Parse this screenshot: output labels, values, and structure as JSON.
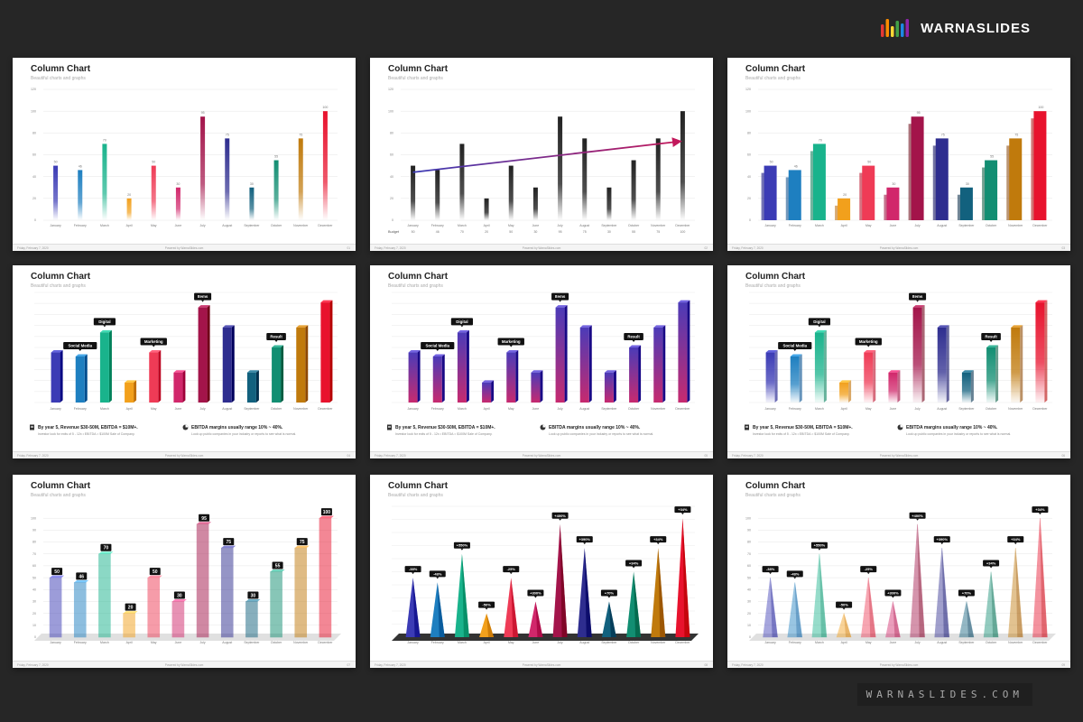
{
  "brand": {
    "name": "WARNASLIDES",
    "colors": [
      "#e53935",
      "#fb8c00",
      "#fdd835",
      "#43a047",
      "#1e88e5",
      "#8e24aa"
    ]
  },
  "footer_url": "WARNASLIDES.COM",
  "months": [
    "January",
    "February",
    "March",
    "April",
    "May",
    "June",
    "July",
    "August",
    "September",
    "October",
    "November",
    "December"
  ],
  "palette": [
    "#3b3bb5",
    "#1e7fc0",
    "#19b38c",
    "#f2a01c",
    "#ef3b56",
    "#d1276b",
    "#a3144a",
    "#2e2d8f",
    "#12617e",
    "#128e72",
    "#c07a0c",
    "#e8122d"
  ],
  "slides": [
    {
      "title": "Column Chart",
      "subtitle": "Beautiful charts and graphs",
      "footer_date": "Friday, February 7, 2020",
      "footer_center": "Powered by WarnaSlides.com",
      "footer_num": "01"
    },
    {
      "title": "Column Chart",
      "subtitle": "Beautiful charts and graphs",
      "footer_date": "Friday, February 7, 2020",
      "footer_center": "Powered by WarnaSlides.com",
      "footer_num": "02",
      "budget_label": "Budget"
    },
    {
      "title": "Column Chart",
      "subtitle": "Beautiful charts and graphs",
      "footer_date": "Friday, February 7, 2020",
      "footer_center": "Powered by WarnaSlides.com",
      "footer_num": "03"
    },
    {
      "title": "Column Chart",
      "subtitle": "Beautiful charts and graphs",
      "footer_date": "Friday, February 7, 2020",
      "footer_center": "Powered by WarnaSlides.com",
      "footer_num": "04",
      "note1_head": "By year 5, Revenue $30-50M, EBITDA = $10M+.",
      "note1_text": "Investor look for exits of 5 - 12x • EBITDA = $100M Sale of Company.",
      "note2_head": "EBITDA margins usually range 10% ~ 40%.",
      "note2_text": "Look up public companies in your industry or reports to see what is normal."
    },
    {
      "title": "Column Chart",
      "subtitle": "Beautiful charts and graphs",
      "footer_date": "Friday, February 7, 2020",
      "footer_center": "Powered by WarnaSlides.com",
      "footer_num": "05",
      "note1_head": "By year 5, Revenue $30-50M, EBITDA = $10M+.",
      "note1_text": "Investor look for exits of 5 - 12x • EBITDA = $100M Sale of Company.",
      "note2_head": "EBITDA margins usually range 10% ~ 40%.",
      "note2_text": "Look up public companies in your industry or reports to see what is normal."
    },
    {
      "title": "Column Chart",
      "subtitle": "Beautiful charts and graphs",
      "footer_date": "Friday, February 7, 2020",
      "footer_center": "Powered by WarnaSlides.com",
      "footer_num": "06",
      "note1_head": "By year 5, Revenue $30-50M, EBITDA = $10M+.",
      "note1_text": "Investor look for exits of 5 - 12x • EBITDA = $100M Sale of Company.",
      "note2_head": "EBITDA margins usually range 10% ~ 40%.",
      "note2_text": "Look up public companies in your industry or reports to see what is normal."
    },
    {
      "title": "Column Chart",
      "subtitle": "Beautiful charts and graphs",
      "footer_date": "Friday, February 7, 2020",
      "footer_center": "Powered by WarnaSlides.com",
      "footer_num": "07"
    },
    {
      "title": "Column Chart",
      "subtitle": "Beautiful charts and graphs",
      "footer_date": "Friday, February 7, 2020",
      "footer_center": "Powered by WarnaSlides.com",
      "footer_num": "08"
    },
    {
      "title": "Column Chart",
      "subtitle": "Beautiful charts and graphs",
      "footer_date": "Friday, February 7, 2020",
      "footer_center": "Powered by WarnaSlides.com",
      "footer_num": "09"
    }
  ],
  "chart_data": [
    {
      "type": "bar",
      "style": "gradient-fade",
      "categories": [
        "January",
        "February",
        "March",
        "April",
        "May",
        "June",
        "July",
        "August",
        "September",
        "October",
        "November",
        "December"
      ],
      "values": [
        50,
        46,
        70,
        20,
        50,
        30,
        95,
        75,
        30,
        55,
        75,
        100
      ],
      "yticks": [
        0,
        20,
        40,
        60,
        80,
        100,
        120
      ],
      "ylim": [
        0,
        120
      ]
    },
    {
      "type": "bar",
      "style": "black-fade-with-trend-arrow",
      "categories": [
        "January",
        "February",
        "March",
        "April",
        "May",
        "June",
        "July",
        "August",
        "September",
        "October",
        "November",
        "December"
      ],
      "values": [
        50,
        46,
        70,
        20,
        50,
        30,
        95,
        75,
        30,
        55,
        75,
        100
      ],
      "yticks": [
        0,
        20,
        40,
        60,
        80,
        100,
        120
      ],
      "ylim": [
        0,
        120
      ],
      "budget_row": [
        "50",
        "46",
        "70",
        "20",
        "50",
        "30",
        "95",
        "75",
        "30",
        "55",
        "75",
        "100"
      ]
    },
    {
      "type": "bar",
      "style": "3d-solid",
      "categories": [
        "January",
        "February",
        "March",
        "April",
        "May",
        "June",
        "July",
        "August",
        "September",
        "October",
        "November",
        "December"
      ],
      "values": [
        50,
        46,
        70,
        20,
        50,
        30,
        95,
        75,
        30,
        55,
        75,
        100
      ],
      "yticks": [
        0,
        20,
        40,
        60,
        80,
        100,
        120
      ],
      "ylim": [
        0,
        120
      ]
    },
    {
      "type": "bar",
      "style": "3d-multicolor-callouts",
      "categories": [
        "January",
        "February",
        "March",
        "April",
        "May",
        "June",
        "July",
        "August",
        "September",
        "October",
        "November",
        "December"
      ],
      "values": [
        50,
        46,
        70,
        20,
        50,
        30,
        95,
        75,
        30,
        55,
        75,
        100
      ],
      "ylim": [
        0,
        110
      ],
      "callouts": [
        {
          "index": 1,
          "text": "Social Media"
        },
        {
          "index": 2,
          "text": "Digital"
        },
        {
          "index": 4,
          "text": "Marketing"
        },
        {
          "index": 6,
          "text": "Items"
        },
        {
          "index": 9,
          "text": "Result"
        }
      ]
    },
    {
      "type": "bar",
      "style": "3d-gradient-purple-callouts",
      "categories": [
        "January",
        "February",
        "March",
        "April",
        "May",
        "June",
        "July",
        "August",
        "September",
        "October",
        "November",
        "December"
      ],
      "values": [
        50,
        46,
        70,
        20,
        50,
        30,
        95,
        75,
        30,
        55,
        75,
        100
      ],
      "ylim": [
        0,
        110
      ],
      "callouts": [
        {
          "index": 1,
          "text": "Social Media"
        },
        {
          "index": 2,
          "text": "Digital"
        },
        {
          "index": 4,
          "text": "Marketing"
        },
        {
          "index": 6,
          "text": "Items"
        },
        {
          "index": 9,
          "text": "Result"
        }
      ]
    },
    {
      "type": "bar",
      "style": "3d-fade-callouts",
      "categories": [
        "January",
        "February",
        "March",
        "April",
        "May",
        "June",
        "July",
        "August",
        "September",
        "October",
        "November",
        "December"
      ],
      "values": [
        50,
        46,
        70,
        20,
        50,
        30,
        95,
        75,
        30,
        55,
        75,
        100
      ],
      "ylim": [
        0,
        110
      ],
      "callouts": [
        {
          "index": 1,
          "text": "Social Media"
        },
        {
          "index": 2,
          "text": "Digital"
        },
        {
          "index": 4,
          "text": "Marketing"
        },
        {
          "index": 6,
          "text": "Items"
        },
        {
          "index": 9,
          "text": "Result"
        }
      ]
    },
    {
      "type": "bar",
      "style": "3d-translucent-labels",
      "categories": [
        "January",
        "February",
        "March",
        "April",
        "May",
        "June",
        "July",
        "August",
        "September",
        "October",
        "November",
        "December"
      ],
      "values": [
        50,
        46,
        70,
        20,
        50,
        30,
        95,
        75,
        30,
        55,
        75,
        100
      ],
      "data_labels": [
        "50",
        "46",
        "70",
        "20",
        "50",
        "30",
        "95",
        "75",
        "30",
        "55",
        "75",
        "100"
      ],
      "yticks": [
        0,
        10,
        20,
        30,
        40,
        50,
        60,
        70,
        80,
        90,
        100
      ],
      "ylim": [
        0,
        110
      ]
    },
    {
      "type": "bar",
      "style": "cone-solid",
      "categories": [
        "January",
        "February",
        "March",
        "April",
        "May",
        "June",
        "July",
        "August",
        "September",
        "October",
        "November",
        "December"
      ],
      "values": [
        50,
        46,
        70,
        20,
        50,
        30,
        95,
        75,
        30,
        55,
        75,
        100
      ],
      "ylim": [
        0,
        110
      ],
      "data_labels": [
        "-38%",
        "-48%",
        "+550%",
        "-50%",
        "-25%",
        "+300%",
        "+400%",
        "+390%",
        "+70%",
        "+34%",
        "+34%",
        "+34%"
      ]
    },
    {
      "type": "bar",
      "style": "cone-translucent",
      "categories": [
        "January",
        "February",
        "March",
        "April",
        "May",
        "June",
        "July",
        "August",
        "September",
        "October",
        "November",
        "December"
      ],
      "values": [
        50,
        46,
        70,
        20,
        50,
        30,
        95,
        75,
        30,
        55,
        75,
        100
      ],
      "yticks": [
        0,
        10,
        20,
        30,
        40,
        50,
        60,
        70,
        80,
        90,
        100
      ],
      "ylim": [
        0,
        110
      ],
      "data_labels": [
        "-38%",
        "-48%",
        "+550%",
        "-50%",
        "-25%",
        "+300%",
        "+400%",
        "+390%",
        "+70%",
        "+34%",
        "+34%",
        "+34%"
      ]
    }
  ]
}
